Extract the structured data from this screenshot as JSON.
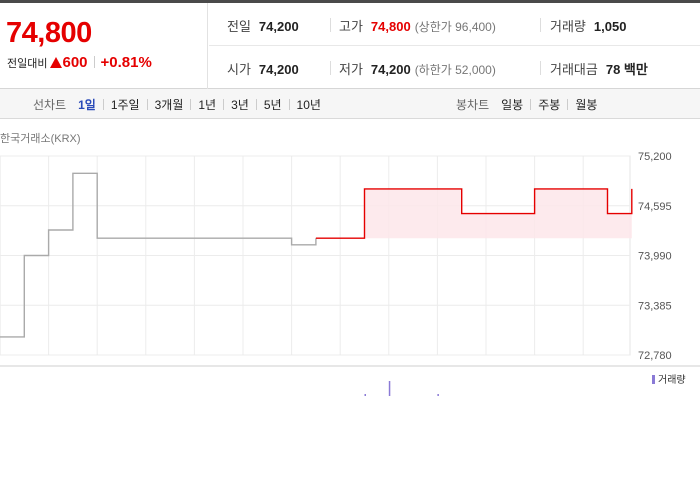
{
  "summary": {
    "price": "74,800",
    "change_label": "전일대비",
    "change_value": "600",
    "change_percent": "+0.81%",
    "stats": {
      "prev_close": {
        "label": "전일",
        "value": "74,200"
      },
      "high": {
        "label": "고가",
        "value": "74,800",
        "sub": "(상한가 96,400)"
      },
      "volume": {
        "label": "거래량",
        "value": "1,050"
      },
      "open": {
        "label": "시가",
        "value": "74,200"
      },
      "low": {
        "label": "저가",
        "value": "74,200",
        "sub": "(하한가 52,000)"
      },
      "trade_amount": {
        "label": "거래대금",
        "value": "78 백만"
      }
    }
  },
  "tabs": {
    "line_chart_label": "선차트",
    "line_tabs": [
      "1일",
      "1주일",
      "3개월",
      "1년",
      "3년",
      "5년",
      "10년"
    ],
    "active_line_tab": "1일",
    "candle_chart_label": "봉차트",
    "candle_tabs": [
      "일봉",
      "주봉",
      "월봉"
    ]
  },
  "source_label": "한국거래소(KRX)",
  "volume_legend": "거래량",
  "colors": {
    "up": "#e50000",
    "active_tab": "#2a4ab8",
    "prev_line": "#aaaaaa",
    "fill": "#fde6ea",
    "volume_bar": "#8a7ad6"
  },
  "chart_data": {
    "type": "line",
    "ylim": [
      72780,
      75200
    ],
    "yticks": [
      "75,200",
      "74,595",
      "73,990",
      "73,385",
      "72,780"
    ],
    "ytick_values": [
      75200,
      74595,
      73990,
      73385,
      72780
    ],
    "prev_close": 74200,
    "gray_series": [
      [
        0,
        73000
      ],
      [
        1,
        73990
      ],
      [
        2,
        74300
      ],
      [
        3,
        74990
      ],
      [
        4,
        74200
      ],
      [
        5,
        74200
      ],
      [
        6,
        74200
      ],
      [
        7,
        74200
      ],
      [
        8,
        74200
      ],
      [
        9,
        74200
      ],
      [
        10,
        74200
      ],
      [
        11,
        74200
      ],
      [
        12,
        74120
      ],
      [
        13,
        74200
      ]
    ],
    "red_series": [
      [
        13,
        74200
      ],
      [
        14,
        74200
      ],
      [
        15,
        74800
      ],
      [
        16,
        74800
      ],
      [
        17,
        74800
      ],
      [
        18,
        74800
      ],
      [
        19,
        74500
      ],
      [
        20,
        74500
      ],
      [
        21,
        74500
      ],
      [
        22,
        74800
      ],
      [
        23,
        74800
      ],
      [
        24,
        74800
      ],
      [
        25,
        74500
      ],
      [
        26,
        74800
      ]
    ],
    "volume_bars": [
      [
        15,
        0.05
      ],
      [
        16,
        0.5
      ],
      [
        18,
        0.05
      ]
    ]
  }
}
